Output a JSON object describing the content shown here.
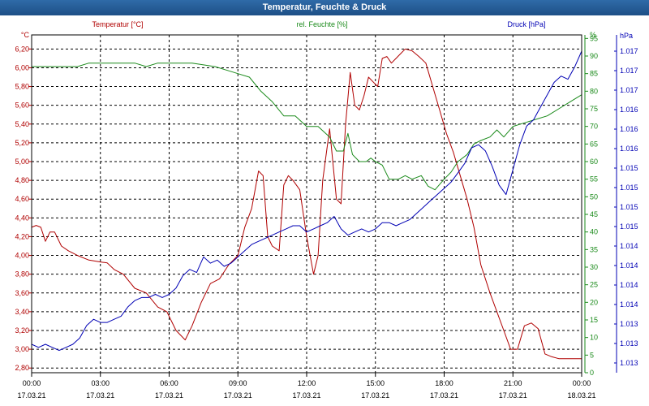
{
  "window": {
    "title": "Temperatur, Feuchte & Druck"
  },
  "colors": {
    "temperature": "#b00000",
    "humidity": "#1a8a1a",
    "pressure": "#0000b4",
    "grid": "#000000"
  },
  "chart_data": {
    "type": "line",
    "title": "Temperatur, Feuchte & Druck",
    "x_ticks": [
      {
        "time": "00:00",
        "date": "17.03.21"
      },
      {
        "time": "03:00",
        "date": "17.03.21"
      },
      {
        "time": "06:00",
        "date": "17.03.21"
      },
      {
        "time": "09:00",
        "date": "17.03.21"
      },
      {
        "time": "12:00",
        "date": "17.03.21"
      },
      {
        "time": "15:00",
        "date": "17.03.21"
      },
      {
        "time": "18:00",
        "date": "17.03.21"
      },
      {
        "time": "21:00",
        "date": "17.03.21"
      },
      {
        "time": "00:00",
        "date": "18.03.21"
      }
    ],
    "xlim": [
      0,
      24
    ],
    "axes": {
      "temperature": {
        "label": "Temperatur [°C]",
        "unit": "°C",
        "ylim": [
          2.75,
          6.35
        ],
        "ticks": [
          "2,80",
          "3,00",
          "3,20",
          "3,40",
          "3,60",
          "3,80",
          "4,00",
          "4,20",
          "4,40",
          "4,60",
          "4,80",
          "5,00",
          "5,20",
          "5,40",
          "5,60",
          "5,80",
          "6,00",
          "6,20"
        ]
      },
      "humidity": {
        "label": "rel. Feuchte [%]",
        "unit": "%",
        "ylim": [
          0,
          96
        ],
        "ticks": [
          "0",
          "5",
          "10",
          "15",
          "20",
          "25",
          "30",
          "35",
          "40",
          "45",
          "50",
          "55",
          "60",
          "65",
          "70",
          "75",
          "80",
          "85",
          "90",
          "95"
        ]
      },
      "pressure": {
        "label": "Druck [hPa]",
        "unit": "hPa",
        "ticks": [
          "1.013",
          "1.013",
          "1.013",
          "1.014",
          "1.014",
          "1.014",
          "1.014",
          "1.015",
          "1.015",
          "1.015",
          "1.015",
          "1.016",
          "1.016",
          "1.016",
          "1.017",
          "1.017",
          "1.017"
        ]
      }
    },
    "series": [
      {
        "name": "Temperatur [°C]",
        "axis": "temperature",
        "x": [
          0,
          0.2,
          0.4,
          0.6,
          0.8,
          1.0,
          1.3,
          1.6,
          2.0,
          2.5,
          3.0,
          3.3,
          3.6,
          4.0,
          4.5,
          5.0,
          5.5,
          5.9,
          6.3,
          6.7,
          7.0,
          7.4,
          7.8,
          8.2,
          8.6,
          9.0,
          9.3,
          9.6,
          9.9,
          10.1,
          10.3,
          10.5,
          10.8,
          11.0,
          11.2,
          11.4,
          11.7,
          12.0,
          12.3,
          12.5,
          12.7,
          13.0,
          13.3,
          13.5,
          13.7,
          13.9,
          14.1,
          14.3,
          14.5,
          14.7,
          14.9,
          15.1,
          15.3,
          15.5,
          15.7,
          15.9,
          16.1,
          16.3,
          16.6,
          16.9,
          17.2,
          17.5,
          17.8,
          18.1,
          18.4,
          18.7,
          19.0,
          19.3,
          19.6,
          20.0,
          20.3,
          20.6,
          20.9,
          21.2,
          21.5,
          21.8,
          22.1,
          22.4,
          22.7,
          23.0,
          23.3,
          23.6,
          23.9,
          24.0
        ],
        "y": [
          4.3,
          4.32,
          4.3,
          4.15,
          4.25,
          4.25,
          4.1,
          4.05,
          4.0,
          3.95,
          3.93,
          3.92,
          3.85,
          3.8,
          3.65,
          3.6,
          3.45,
          3.4,
          3.2,
          3.1,
          3.25,
          3.5,
          3.7,
          3.75,
          3.9,
          4.0,
          4.3,
          4.5,
          4.9,
          4.85,
          4.2,
          4.1,
          4.05,
          4.75,
          4.85,
          4.8,
          4.7,
          4.2,
          3.8,
          4.0,
          4.8,
          5.35,
          4.6,
          4.55,
          5.4,
          5.95,
          5.6,
          5.55,
          5.7,
          5.9,
          5.85,
          5.8,
          6.1,
          6.12,
          6.05,
          6.1,
          6.15,
          6.2,
          6.18,
          6.12,
          6.05,
          5.8,
          5.55,
          5.3,
          5.1,
          4.85,
          4.6,
          4.3,
          3.9,
          3.6,
          3.4,
          3.2,
          3.0,
          3.0,
          3.25,
          3.28,
          3.22,
          2.95,
          2.92,
          2.9,
          2.9,
          2.9,
          2.9,
          2.9
        ]
      },
      {
        "name": "rel. Feuchte [%]",
        "axis": "humidity",
        "x": [
          0,
          1.0,
          2.0,
          2.5,
          3.0,
          3.5,
          4.0,
          4.5,
          5.0,
          5.5,
          6.0,
          7.0,
          8.0,
          8.5,
          9.0,
          9.5,
          10.0,
          10.5,
          11.0,
          11.5,
          12.0,
          12.5,
          13.0,
          13.3,
          13.6,
          13.8,
          14.0,
          14.3,
          14.6,
          14.8,
          15.0,
          15.3,
          15.6,
          16.0,
          16.3,
          16.6,
          17.0,
          17.3,
          17.6,
          18.0,
          18.3,
          18.6,
          19.0,
          19.3,
          19.6,
          20.0,
          20.3,
          20.6,
          21.0,
          21.5,
          22.0,
          22.5,
          23.0,
          23.5,
          24.0
        ],
        "y": [
          87,
          87,
          87,
          88,
          88,
          88,
          88,
          88,
          87,
          88,
          88,
          88,
          87,
          86,
          85,
          84,
          80,
          77,
          73,
          73,
          70,
          70,
          67,
          63,
          63,
          68,
          62,
          60,
          60,
          61,
          60,
          59,
          55,
          55,
          56,
          55,
          56,
          53,
          52,
          55,
          57,
          60,
          62,
          65,
          66,
          67,
          69,
          67,
          70,
          71,
          72,
          73,
          75,
          77,
          79
        ]
      },
      {
        "name": "Druck [hPa]",
        "axis": "pressure",
        "x": [
          0,
          0.3,
          0.6,
          0.9,
          1.2,
          1.5,
          1.8,
          2.1,
          2.4,
          2.7,
          3.0,
          3.3,
          3.6,
          3.9,
          4.2,
          4.5,
          4.8,
          5.1,
          5.4,
          5.7,
          6.0,
          6.3,
          6.6,
          6.9,
          7.2,
          7.5,
          7.8,
          8.1,
          8.4,
          8.7,
          9.0,
          9.3,
          9.6,
          9.9,
          10.2,
          10.5,
          10.8,
          11.1,
          11.4,
          11.7,
          12.0,
          12.3,
          12.6,
          12.9,
          13.2,
          13.5,
          13.8,
          14.1,
          14.4,
          14.7,
          15.0,
          15.3,
          15.6,
          15.9,
          16.2,
          16.5,
          16.8,
          17.1,
          17.4,
          17.7,
          18.0,
          18.3,
          18.6,
          18.9,
          19.2,
          19.5,
          19.8,
          20.1,
          20.4,
          20.7,
          21.0,
          21.3,
          21.6,
          21.9,
          22.2,
          22.5,
          22.8,
          23.1,
          23.4,
          23.7,
          24.0
        ],
        "y": [
          6,
          5,
          6,
          5,
          4,
          5,
          6,
          8,
          12,
          14,
          13,
          13,
          14,
          15,
          18,
          20,
          21,
          21,
          22,
          21,
          22,
          24,
          28,
          30,
          29,
          34,
          32,
          33,
          31,
          32,
          34,
          36,
          38,
          39,
          40,
          41,
          42,
          43,
          44,
          44,
          42,
          43,
          44,
          45,
          47,
          43,
          41,
          42,
          43,
          42,
          43,
          45,
          45,
          44,
          45,
          46,
          48,
          50,
          52,
          54,
          56,
          58,
          61,
          64,
          69,
          70,
          68,
          63,
          57,
          54,
          62,
          70,
          76,
          78,
          82,
          86,
          90,
          92,
          91,
          95,
          100
        ]
      }
    ]
  }
}
